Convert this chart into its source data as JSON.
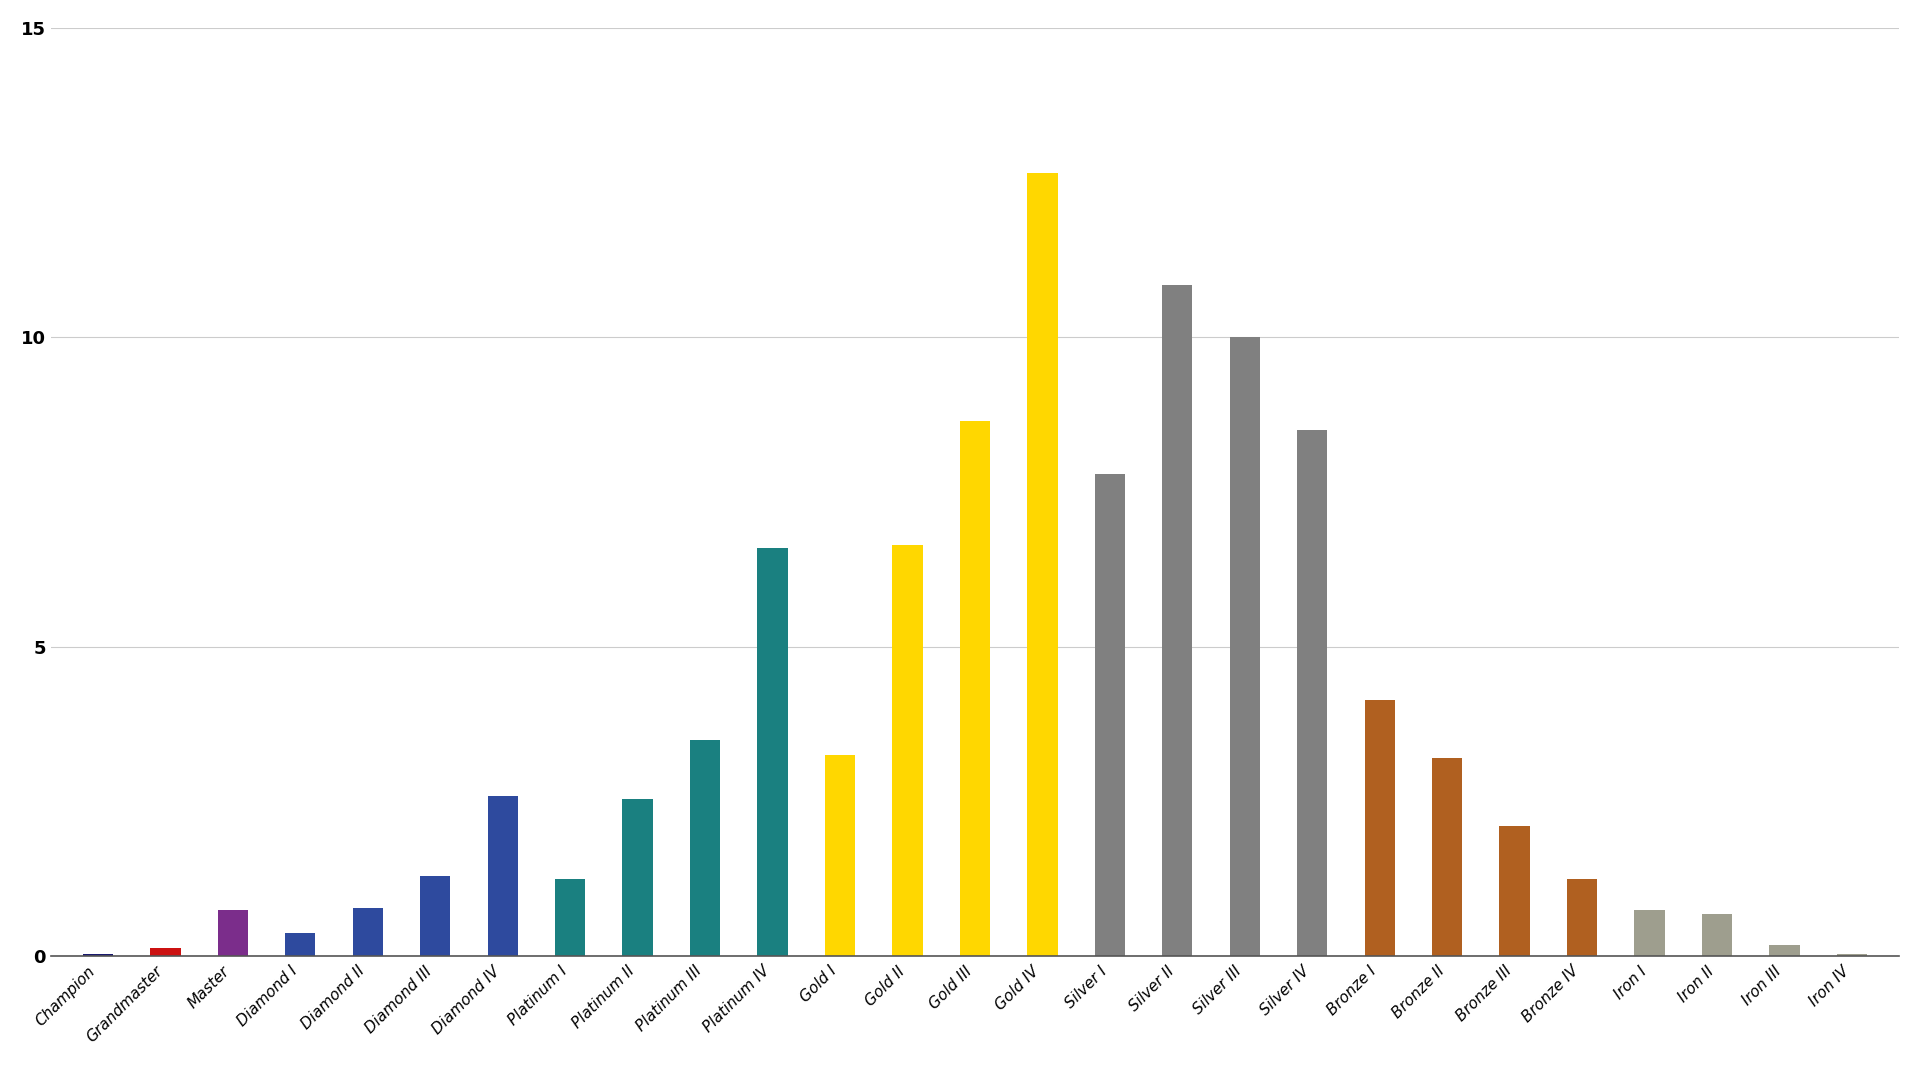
{
  "categories": [
    "Champion",
    "Grandmaster",
    "Master",
    "Diamond I",
    "Diamond II",
    "Diamond III",
    "Diamond IV",
    "Platinum I",
    "Platinum II",
    "Platinum III",
    "Platinum IV",
    "Gold I",
    "Gold II",
    "Gold III",
    "Gold IV",
    "Silver I",
    "Silver II",
    "Silver III",
    "Silver IV",
    "Bronze I",
    "Bronze II",
    "Bronze III",
    "Bronze IV",
    "Iron I",
    "Iron II",
    "Iron III",
    "Iron IV"
  ],
  "values": [
    0.04,
    0.13,
    0.75,
    0.38,
    0.78,
    1.3,
    2.6,
    1.25,
    2.55,
    3.5,
    6.6,
    3.25,
    6.65,
    8.65,
    12.65,
    7.8,
    10.85,
    10.0,
    8.5,
    4.15,
    3.2,
    2.1,
    1.25,
    0.75,
    0.68,
    0.18,
    0.04
  ],
  "bar_colors": [
    "#1a1a6e",
    "#cc1111",
    "#7b2d8b",
    "#2e4a9e",
    "#2e4a9e",
    "#2e4a9e",
    "#2e4a9e",
    "#1a8080",
    "#1a8080",
    "#1a8080",
    "#1a8080",
    "#FFD700",
    "#FFD700",
    "#FFD700",
    "#FFD700",
    "#808080",
    "#808080",
    "#808080",
    "#808080",
    "#b06020",
    "#b06020",
    "#b06020",
    "#b06020",
    "#9e9e8e",
    "#9e9e8e",
    "#9e9e8e",
    "#9e9e8e"
  ],
  "ylim": [
    0,
    15
  ],
  "yticks": [
    0,
    5,
    10,
    15
  ],
  "background_color": "#ffffff",
  "grid_color": "#cccccc",
  "bar_width": 0.45
}
